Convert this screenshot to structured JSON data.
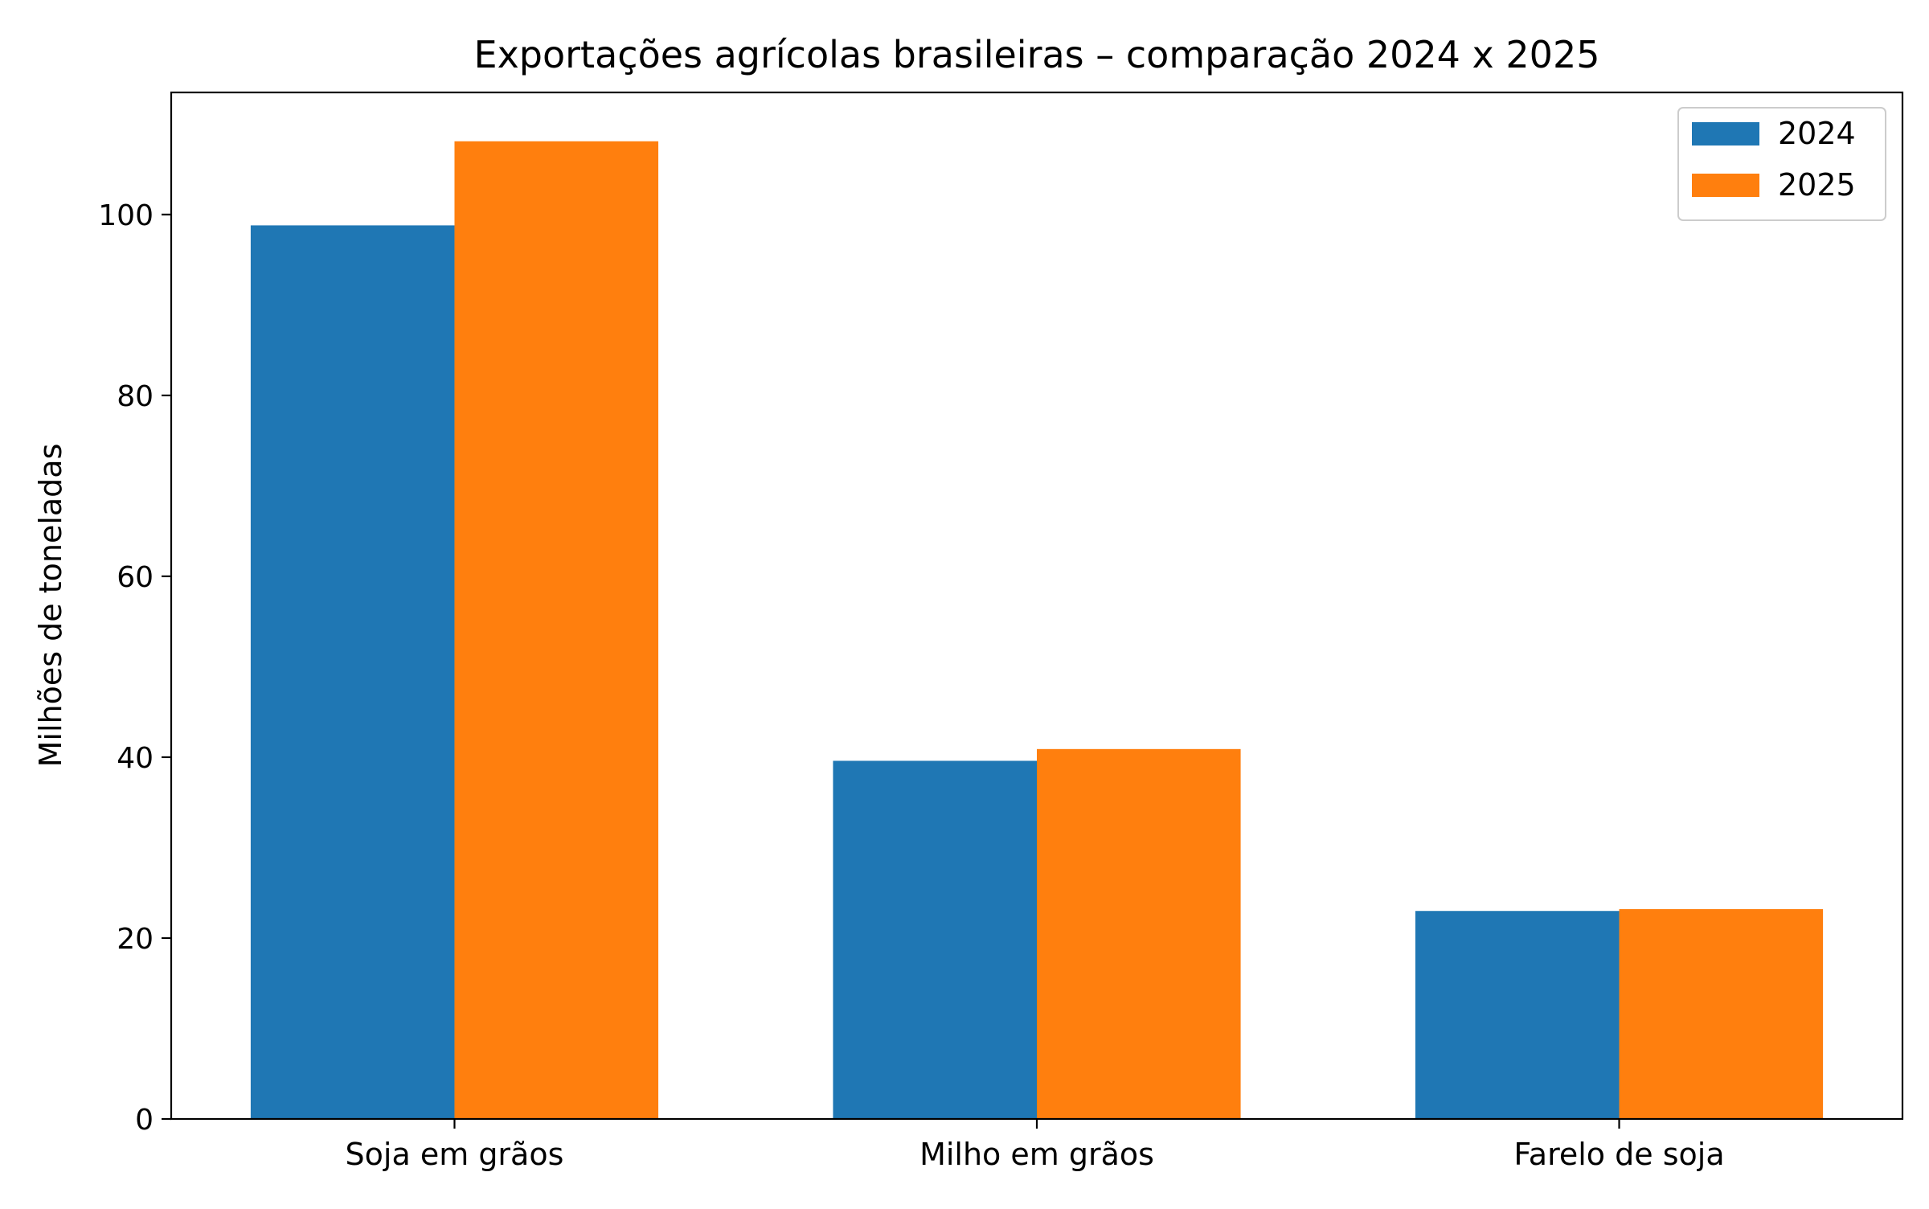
{
  "chart_data": {
    "type": "bar",
    "title": "Exportações agrícolas brasileiras – comparação 2024 x 2025",
    "xlabel": "",
    "ylabel": "Milhões de toneladas",
    "categories": [
      "Soja em grãos",
      "Milho em grãos",
      "Farelo de soja"
    ],
    "series": [
      {
        "name": "2024",
        "color": "#1f77b4",
        "values": [
          98.8,
          39.6,
          23.0
        ]
      },
      {
        "name": "2025",
        "color": "#ff7f0e",
        "values": [
          108.1,
          40.9,
          23.2
        ]
      }
    ],
    "ylim": [
      0,
      113.5
    ],
    "yticks": [
      0,
      20,
      40,
      60,
      80,
      100
    ],
    "grid": false,
    "legend_position": "top-right"
  }
}
